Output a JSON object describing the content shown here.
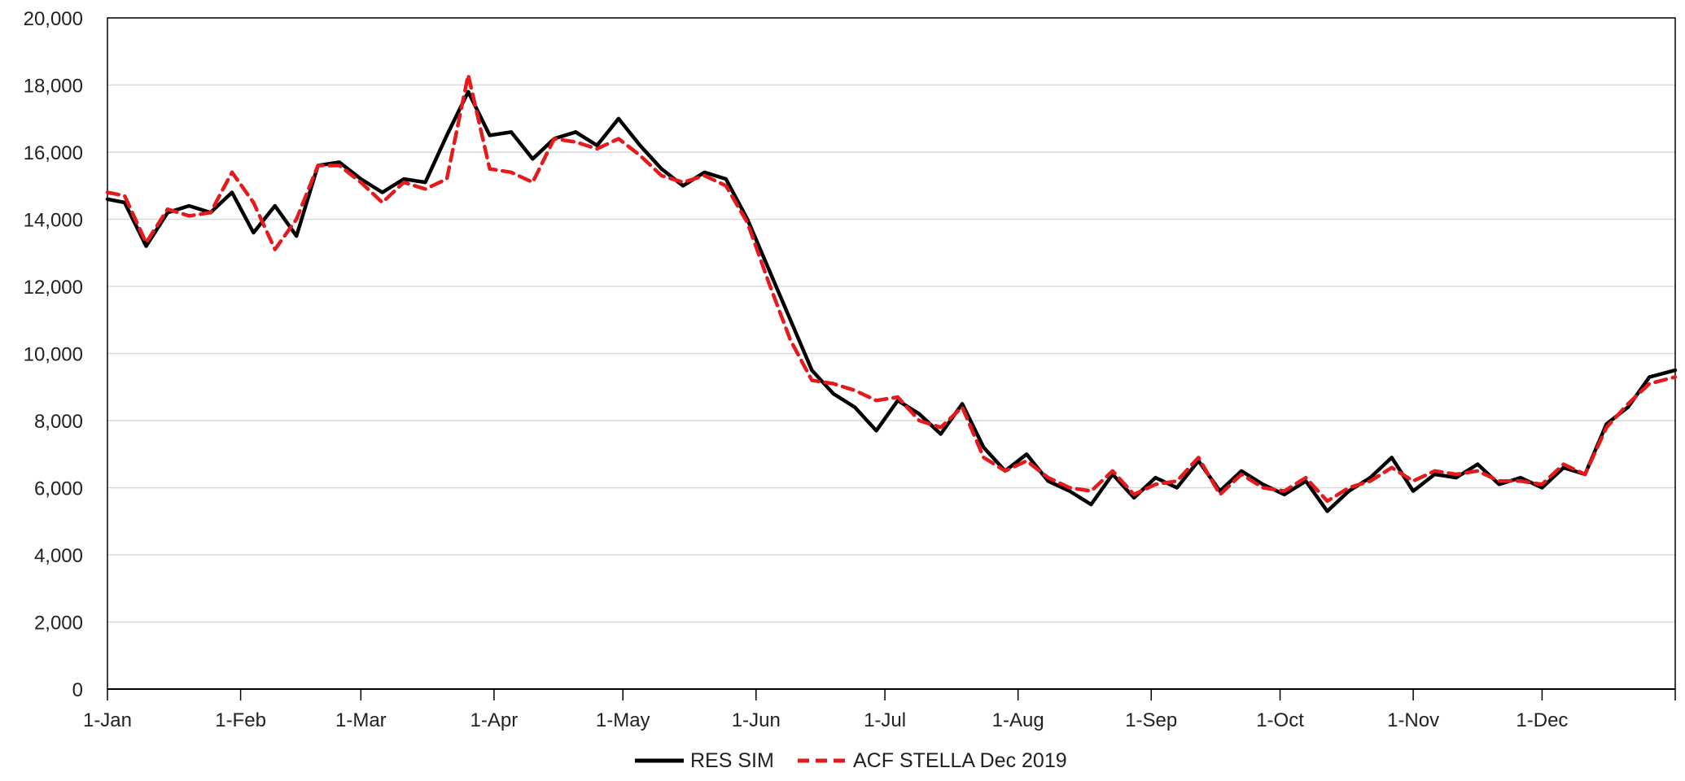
{
  "chart_data": {
    "type": "line",
    "x_tick_labels": [
      "1-Jan",
      "1-Feb",
      "1-Mar",
      "1-Apr",
      "1-May",
      "1-Jun",
      "1-Jul",
      "1-Aug",
      "1-Sep",
      "1-Oct",
      "1-Nov",
      "1-Dec"
    ],
    "x_tick_days": [
      1,
      32,
      60,
      91,
      121,
      152,
      182,
      213,
      244,
      274,
      305,
      335
    ],
    "x_range_days": [
      1,
      366
    ],
    "y_tick_labels": [
      "0",
      "2,000",
      "4,000",
      "6,000",
      "8,000",
      "10,000",
      "12,000",
      "14,000",
      "16,000",
      "18,000",
      "20,000"
    ],
    "ylim": [
      0,
      20000
    ],
    "grid": "horizontal",
    "legend_position": "bottom",
    "series": [
      {
        "name": "RES SIM",
        "color": "#000000",
        "style": "solid",
        "x_days": [
          1,
          5,
          10,
          15,
          20,
          25,
          30,
          35,
          40,
          45,
          50,
          55,
          60,
          65,
          70,
          75,
          80,
          85,
          90,
          95,
          100,
          105,
          110,
          115,
          120,
          125,
          130,
          135,
          140,
          145,
          150,
          155,
          160,
          165,
          170,
          175,
          180,
          185,
          190,
          195,
          200,
          205,
          210,
          215,
          220,
          225,
          230,
          235,
          240,
          245,
          250,
          255,
          260,
          265,
          270,
          275,
          280,
          285,
          290,
          295,
          300,
          305,
          310,
          315,
          320,
          325,
          330,
          335,
          340,
          345,
          350,
          355,
          360,
          366
        ],
        "values": [
          14600,
          14500,
          13200,
          14200,
          14400,
          14200,
          14800,
          13600,
          14400,
          13500,
          15600,
          15700,
          15200,
          14800,
          15200,
          15100,
          16500,
          17800,
          16500,
          16600,
          15800,
          16400,
          16600,
          16200,
          17000,
          16200,
          15500,
          15000,
          15400,
          15200,
          14000,
          12500,
          11000,
          9500,
          8800,
          8400,
          7700,
          8600,
          8200,
          7600,
          8500,
          7200,
          6500,
          7000,
          6200,
          5900,
          5500,
          6400,
          5700,
          6300,
          6000,
          6800,
          5900,
          6500,
          6100,
          5800,
          6200,
          5300,
          5900,
          6300,
          6900,
          5900,
          6400,
          6300,
          6700,
          6100,
          6300,
          6000,
          6600,
          6400,
          7900,
          8400,
          9300,
          9500
        ]
      },
      {
        "name": "ACF STELLA Dec 2019",
        "color": "#e41a1c",
        "style": "dashed",
        "x_days": [
          1,
          5,
          10,
          15,
          20,
          25,
          30,
          35,
          40,
          45,
          50,
          55,
          60,
          65,
          70,
          75,
          80,
          85,
          90,
          95,
          100,
          105,
          110,
          115,
          120,
          125,
          130,
          135,
          140,
          145,
          150,
          155,
          160,
          165,
          170,
          175,
          180,
          185,
          190,
          195,
          200,
          205,
          210,
          215,
          220,
          225,
          230,
          235,
          240,
          245,
          250,
          255,
          260,
          265,
          270,
          275,
          280,
          285,
          290,
          295,
          300,
          305,
          310,
          315,
          320,
          325,
          330,
          335,
          340,
          345,
          350,
          355,
          360,
          366
        ],
        "values": [
          14800,
          14700,
          13300,
          14300,
          14100,
          14200,
          15400,
          14500,
          13100,
          14000,
          15600,
          15600,
          15100,
          14500,
          15100,
          14900,
          15200,
          18300,
          15500,
          15400,
          15100,
          16400,
          16300,
          16100,
          16400,
          15900,
          15300,
          15100,
          15300,
          15000,
          13900,
          12100,
          10400,
          9200,
          9100,
          8900,
          8600,
          8700,
          8000,
          7800,
          8400,
          6900,
          6500,
          6800,
          6300,
          6000,
          5900,
          6500,
          5800,
          6100,
          6200,
          6900,
          5800,
          6400,
          6000,
          5900,
          6300,
          5600,
          6000,
          6200,
          6600,
          6200,
          6500,
          6400,
          6500,
          6200,
          6200,
          6100,
          6700,
          6400,
          7800,
          8500,
          9100,
          9300
        ]
      }
    ]
  }
}
